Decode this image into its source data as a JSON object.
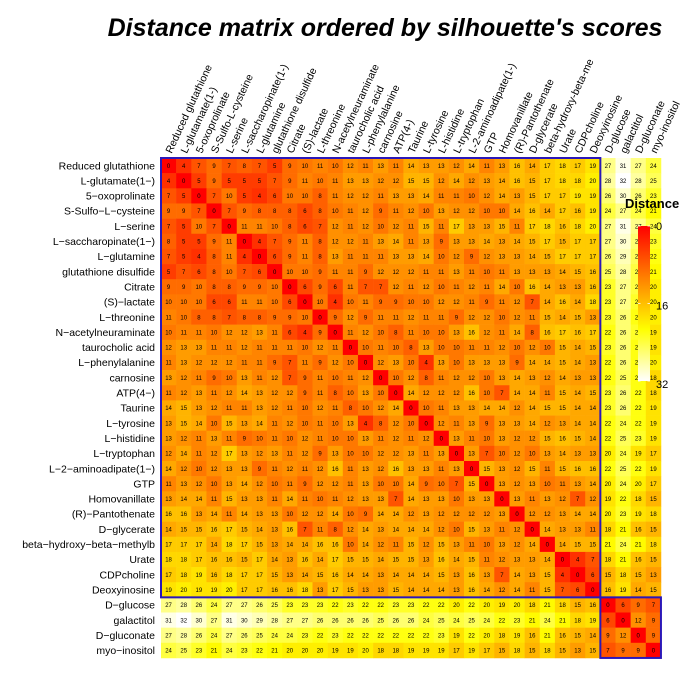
{
  "chart_data": {
    "type": "heatmap",
    "title": "Distance matrix ordered by silhouette's scores",
    "legend": {
      "title": "Distance",
      "ticks": [
        0,
        16,
        32
      ],
      "range": [
        0,
        32
      ],
      "placement": "right",
      "colors": [
        "#FF0000",
        "#FF8000",
        "#FFFF00",
        "#FFFFFF"
      ]
    },
    "column_labels": [
      "Reduced glutathione",
      "L-glutamate(1-)",
      "5-oxoprolinate",
      "S-Sulfo-L-cysteine",
      "L-serine",
      "L-saccharopinate(1-)",
      "L-glutamine",
      "glutathione disulfide",
      "Citrate",
      "(S)-lactate",
      "L-threonine",
      "N-acetylneuraminate",
      "taurocholic acid",
      "L-phenylalanine",
      "carnosine",
      "ATP(4-)",
      "Taurine",
      "L-tyrosine",
      "L-histidine",
      "L-tryptophan",
      "L-2-aminoadipate(1-)",
      "GTP",
      "Homovanillate",
      "(R)-Pantothenate",
      "D-glycerate",
      "beta-hydroxy-beta-me",
      "Urate",
      "CDPcholine",
      "Deoxyinosine",
      "D-glucose",
      "galactitol",
      "D-gluconate",
      "myo-inositol"
    ],
    "row_labels": [
      "Reduced glutathione",
      "L-glutamate(1−)",
      "5−oxoprolinate",
      "S-Sulfo−L−cysteine",
      "L−serine",
      "L−saccharopinate(1−)",
      "L−glutamine",
      "glutathione disulfide",
      "Citrate",
      "(S)−lactate",
      "L−threonine",
      "N−acetylneuraminate",
      "taurocholic acid",
      "L−phenylalanine",
      "carnosine",
      "ATP(4−)",
      "Taurine",
      "L−tyrosine",
      "L−histidine",
      "L−tryptophan",
      "L−2−aminoadipate(1−)",
      "GTP",
      "Homovanillate",
      "(R)−Pantothenate",
      "D−glycerate",
      "beta−hydroxy−beta−methylb",
      "Urate",
      "CDPcholine",
      "Deoxyinosine",
      "D−glucose",
      "galactitol",
      "D−gluconate",
      "myo−inositol"
    ],
    "cluster_split": 29,
    "cluster_border_color": "#2b18b8",
    "values": [
      [
        0,
        4,
        7,
        9,
        7,
        8,
        7,
        5,
        9,
        10,
        11,
        10,
        12,
        11,
        13,
        11,
        14,
        13,
        13,
        12,
        14,
        11,
        13,
        16,
        14,
        17,
        18,
        17,
        19,
        27,
        31,
        27,
        24
      ],
      [
        4,
        0,
        5,
        9,
        5,
        5,
        5,
        7,
        9,
        11,
        10,
        11,
        13,
        13,
        12,
        12,
        15,
        15,
        12,
        14,
        12,
        13,
        14,
        16,
        15,
        17,
        18,
        18,
        20,
        28,
        32,
        28,
        25
      ],
      [
        7,
        5,
        0,
        7,
        10,
        5,
        4,
        6,
        10,
        10,
        8,
        11,
        12,
        12,
        11,
        13,
        13,
        14,
        11,
        11,
        10,
        12,
        14,
        13,
        15,
        17,
        17,
        19,
        19,
        26,
        30,
        26,
        23
      ],
      [
        9,
        9,
        7,
        0,
        7,
        9,
        8,
        8,
        8,
        6,
        8,
        10,
        11,
        12,
        9,
        11,
        12,
        10,
        13,
        12,
        12,
        10,
        10,
        14,
        16,
        14,
        17,
        16,
        19,
        24,
        27,
        24,
        21
      ],
      [
        7,
        5,
        10,
        7,
        0,
        11,
        11,
        10,
        8,
        6,
        7,
        12,
        11,
        12,
        10,
        12,
        11,
        15,
        11,
        17,
        13,
        13,
        15,
        11,
        17,
        18,
        16,
        18,
        20,
        27,
        31,
        27,
        24
      ],
      [
        8,
        5,
        5,
        9,
        11,
        0,
        4,
        7,
        9,
        11,
        8,
        12,
        12,
        11,
        13,
        14,
        11,
        13,
        9,
        13,
        13,
        14,
        13,
        14,
        15,
        17,
        15,
        17,
        17,
        27,
        30,
        26,
        23
      ],
      [
        7,
        5,
        4,
        8,
        11,
        4,
        0,
        6,
        9,
        11,
        8,
        13,
        11,
        11,
        11,
        13,
        13,
        14,
        10,
        12,
        9,
        12,
        13,
        13,
        14,
        15,
        17,
        17,
        17,
        26,
        29,
        25,
        22
      ],
      [
        5,
        7,
        6,
        8,
        10,
        7,
        6,
        0,
        10,
        10,
        9,
        11,
        11,
        9,
        12,
        12,
        12,
        11,
        11,
        13,
        11,
        10,
        11,
        13,
        13,
        13,
        14,
        15,
        16,
        25,
        28,
        24,
        21
      ],
      [
        9,
        9,
        10,
        8,
        8,
        9,
        9,
        10,
        0,
        6,
        9,
        6,
        11,
        7,
        7,
        12,
        11,
        12,
        10,
        11,
        12,
        11,
        14,
        10,
        16,
        14,
        13,
        13,
        16,
        23,
        27,
        24,
        20
      ],
      [
        10,
        10,
        10,
        6,
        6,
        11,
        11,
        10,
        6,
        0,
        10,
        4,
        10,
        11,
        9,
        9,
        10,
        10,
        12,
        12,
        11,
        9,
        11,
        12,
        7,
        14,
        16,
        14,
        18,
        23,
        27,
        23,
        20
      ],
      [
        11,
        10,
        8,
        8,
        7,
        8,
        8,
        9,
        9,
        10,
        0,
        9,
        12,
        9,
        11,
        11,
        12,
        11,
        11,
        9,
        12,
        12,
        10,
        12,
        11,
        15,
        14,
        15,
        13,
        23,
        26,
        22,
        20
      ],
      [
        10,
        11,
        11,
        10,
        12,
        12,
        13,
        11,
        6,
        4,
        9,
        0,
        11,
        12,
        10,
        8,
        11,
        10,
        10,
        13,
        16,
        12,
        11,
        14,
        8,
        16,
        17,
        16,
        17,
        22,
        26,
        23,
        19
      ],
      [
        12,
        13,
        13,
        11,
        11,
        12,
        11,
        11,
        11,
        10,
        12,
        11,
        0,
        10,
        11,
        10,
        8,
        13,
        10,
        10,
        11,
        11,
        12,
        10,
        12,
        10,
        15,
        14,
        15,
        23,
        26,
        22,
        19
      ],
      [
        11,
        13,
        12,
        12,
        12,
        11,
        11,
        9,
        7,
        11,
        9,
        12,
        10,
        0,
        12,
        13,
        10,
        4,
        13,
        10,
        13,
        13,
        13,
        9,
        14,
        14,
        15,
        14,
        13,
        22,
        26,
        22,
        20
      ],
      [
        13,
        12,
        11,
        9,
        10,
        13,
        11,
        12,
        7,
        9,
        11,
        10,
        11,
        12,
        0,
        10,
        12,
        8,
        11,
        12,
        12,
        10,
        13,
        14,
        13,
        12,
        14,
        13,
        13,
        22,
        25,
        22,
        18
      ],
      [
        11,
        12,
        13,
        11,
        12,
        14,
        13,
        12,
        12,
        9,
        11,
        8,
        10,
        13,
        10,
        0,
        14,
        12,
        12,
        12,
        16,
        10,
        7,
        14,
        14,
        11,
        15,
        14,
        15,
        23,
        26,
        22,
        18
      ],
      [
        14,
        15,
        13,
        12,
        11,
        11,
        13,
        12,
        11,
        10,
        12,
        11,
        8,
        10,
        12,
        14,
        0,
        10,
        11,
        13,
        13,
        14,
        14,
        12,
        14,
        15,
        15,
        14,
        14,
        23,
        26,
        22,
        19
      ],
      [
        13,
        15,
        14,
        10,
        15,
        13,
        14,
        11,
        12,
        10,
        11,
        10,
        13,
        4,
        8,
        12,
        10,
        0,
        12,
        11,
        13,
        9,
        13,
        13,
        14,
        12,
        13,
        14,
        14,
        22,
        24,
        22,
        19
      ],
      [
        13,
        12,
        11,
        13,
        11,
        9,
        10,
        11,
        10,
        12,
        11,
        10,
        10,
        13,
        11,
        12,
        11,
        12,
        0,
        13,
        11,
        10,
        13,
        12,
        12,
        15,
        16,
        15,
        14,
        22,
        25,
        23,
        19
      ],
      [
        12,
        14,
        11,
        12,
        17,
        13,
        12,
        13,
        11,
        12,
        9,
        13,
        10,
        10,
        12,
        12,
        13,
        11,
        13,
        0,
        13,
        7,
        10,
        12,
        10,
        13,
        14,
        13,
        13,
        20,
        24,
        19,
        17
      ],
      [
        14,
        12,
        10,
        12,
        13,
        13,
        9,
        11,
        12,
        11,
        12,
        16,
        11,
        13,
        12,
        16,
        13,
        13,
        11,
        13,
        0,
        15,
        13,
        12,
        15,
        11,
        15,
        16,
        16,
        22,
        25,
        22,
        19
      ],
      [
        11,
        13,
        12,
        10,
        13,
        14,
        12,
        10,
        11,
        9,
        12,
        12,
        11,
        13,
        10,
        10,
        14,
        9,
        10,
        7,
        15,
        0,
        13,
        12,
        13,
        10,
        11,
        13,
        14,
        20,
        24,
        20,
        17
      ],
      [
        13,
        14,
        14,
        11,
        15,
        13,
        13,
        11,
        14,
        11,
        10,
        11,
        12,
        13,
        13,
        7,
        14,
        13,
        13,
        10,
        13,
        13,
        0,
        13,
        11,
        13,
        12,
        7,
        12,
        19,
        22,
        18,
        15
      ],
      [
        16,
        16,
        13,
        14,
        11,
        14,
        13,
        13,
        10,
        12,
        12,
        14,
        10,
        9,
        14,
        14,
        12,
        13,
        12,
        12,
        12,
        12,
        13,
        0,
        12,
        12,
        13,
        14,
        14,
        20,
        23,
        19,
        18
      ],
      [
        14,
        15,
        15,
        16,
        17,
        15,
        14,
        13,
        16,
        7,
        11,
        8,
        12,
        14,
        13,
        14,
        14,
        14,
        12,
        10,
        15,
        13,
        11,
        12,
        0,
        14,
        13,
        13,
        11,
        18,
        21,
        16,
        15
      ],
      [
        17,
        17,
        17,
        14,
        18,
        17,
        15,
        13,
        14,
        14,
        16,
        16,
        10,
        14,
        12,
        11,
        15,
        12,
        15,
        13,
        11,
        10,
        13,
        12,
        14,
        0,
        14,
        15,
        15,
        21,
        24,
        21,
        18
      ],
      [
        18,
        18,
        17,
        16,
        16,
        15,
        17,
        14,
        13,
        16,
        14,
        17,
        15,
        15,
        14,
        15,
        15,
        13,
        16,
        14,
        15,
        11,
        12,
        13,
        13,
        14,
        0,
        4,
        7,
        18,
        21,
        16,
        15
      ],
      [
        17,
        18,
        19,
        16,
        18,
        17,
        17,
        15,
        13,
        14,
        15,
        16,
        14,
        14,
        13,
        14,
        14,
        14,
        15,
        13,
        16,
        13,
        7,
        14,
        13,
        15,
        4,
        0,
        6,
        15,
        18,
        15,
        13
      ],
      [
        19,
        20,
        19,
        19,
        20,
        17,
        17,
        16,
        16,
        18,
        13,
        17,
        15,
        13,
        13,
        15,
        14,
        14,
        14,
        13,
        16,
        14,
        12,
        14,
        11,
        15,
        7,
        6,
        0,
        16,
        19,
        14,
        15
      ],
      [
        27,
        28,
        26,
        24,
        27,
        27,
        26,
        25,
        23,
        23,
        23,
        22,
        23,
        22,
        22,
        23,
        23,
        22,
        22,
        20,
        22,
        20,
        19,
        20,
        18,
        21,
        18,
        15,
        16,
        0,
        6,
        9,
        7
      ],
      [
        31,
        32,
        30,
        27,
        31,
        30,
        29,
        28,
        27,
        27,
        26,
        26,
        26,
        26,
        25,
        26,
        26,
        24,
        25,
        24,
        25,
        24,
        22,
        23,
        21,
        24,
        21,
        18,
        19,
        6,
        0,
        12,
        9
      ],
      [
        27,
        28,
        26,
        24,
        27,
        26,
        25,
        24,
        24,
        23,
        22,
        23,
        22,
        22,
        22,
        22,
        22,
        22,
        23,
        19,
        22,
        20,
        18,
        19,
        16,
        21,
        16,
        15,
        14,
        9,
        12,
        0,
        9
      ],
      [
        24,
        25,
        23,
        21,
        24,
        23,
        22,
        21,
        20,
        20,
        20,
        19,
        19,
        20,
        18,
        18,
        19,
        19,
        19,
        17,
        19,
        17,
        15,
        18,
        15,
        18,
        15,
        13,
        15,
        7,
        9,
        9,
        0
      ]
    ]
  }
}
